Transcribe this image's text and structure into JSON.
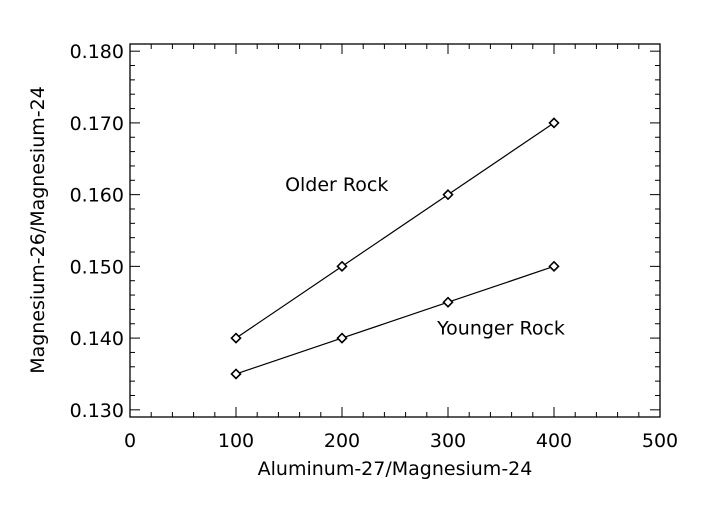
{
  "chart_data": {
    "type": "line",
    "title": "",
    "xlabel": "Aluminum-27/Magnesium-24",
    "ylabel": "Magnesium-26/Magnesium-24",
    "xlim": [
      0,
      500
    ],
    "ylim": [
      0.129,
      0.181
    ],
    "x_ticks": [
      0,
      100,
      200,
      300,
      400,
      500
    ],
    "x_tick_labels": [
      "0",
      "100",
      "200",
      "300",
      "400",
      "500"
    ],
    "y_ticks": [
      0.13,
      0.14,
      0.15,
      0.16,
      0.17,
      0.18
    ],
    "y_tick_labels": [
      "0.130",
      "0.140",
      "0.150",
      "0.160",
      "0.170",
      "0.180"
    ],
    "grid": false,
    "legend": "none",
    "marker": "diamond",
    "line_color": "#000000",
    "series": [
      {
        "label": "Older Rock",
        "label_anchor": {
          "x": 195,
          "y": 0.1605
        },
        "x": [
          100,
          200,
          300,
          400
        ],
        "y": [
          0.14,
          0.15,
          0.16,
          0.17
        ]
      },
      {
        "label": "Younger Rock",
        "label_anchor": {
          "x": 350,
          "y": 0.1405
        },
        "x": [
          100,
          200,
          300,
          400
        ],
        "y": [
          0.135,
          0.14,
          0.145,
          0.15
        ]
      }
    ]
  }
}
